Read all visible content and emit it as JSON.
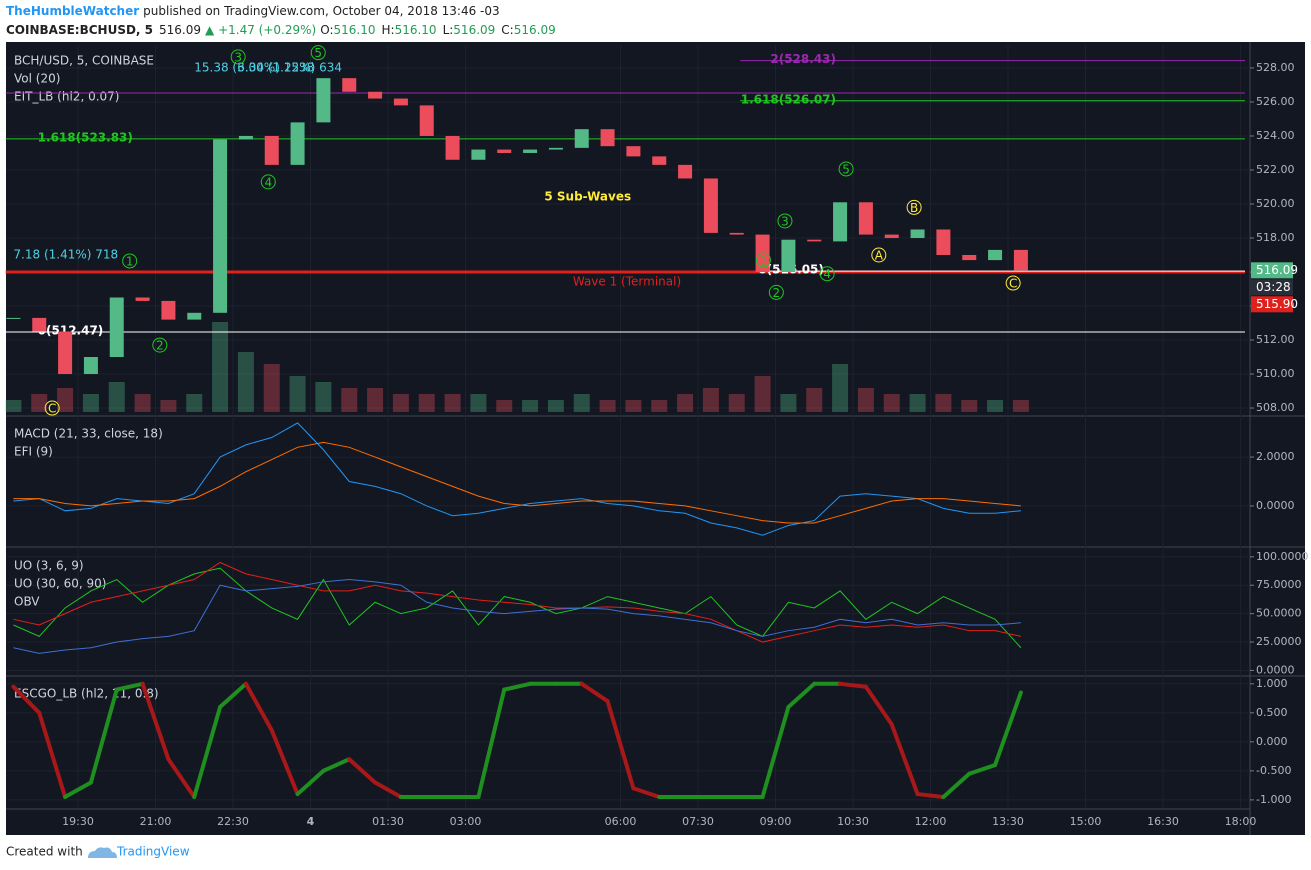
{
  "header": {
    "author": "TheHumbleWatcher",
    "published": "published on TradingView.com, October 04, 2018 13:46 -03",
    "symbol": "COINBASE:BCHUSD, 5",
    "last": "516.09",
    "change": "▲ +1.47 (+0.29%)",
    "ohlc": [
      {
        "key": "O:",
        "value": "516.10"
      },
      {
        "key": "H:",
        "value": "516.10"
      },
      {
        "key": "L:",
        "value": "516.09"
      },
      {
        "key": "C:",
        "value": "516.09"
      }
    ]
  },
  "footer": {
    "created": "Created with",
    "brand": "TradingView"
  },
  "chart_data": [
    {
      "type": "candlestick",
      "legend": [
        "BCH/USD, 5, COINBASE",
        "Vol (20)",
        "EIT_LB (hl2, 0.07)"
      ],
      "x": [
        15,
        45,
        75,
        105,
        135,
        165,
        195,
        225,
        255,
        285,
        315,
        345,
        375,
        405,
        435,
        465,
        495,
        525,
        555,
        585,
        615,
        645,
        675,
        705,
        735,
        765,
        795,
        825,
        855,
        885,
        915,
        945,
        975,
        1005,
        1035,
        1065,
        1095,
        1125,
        1155,
        1185
      ],
      "xticks": [
        {
          "value": 90,
          "label": "19:30"
        },
        {
          "value": 180,
          "label": "21:00"
        },
        {
          "value": 270,
          "label": "22:30"
        },
        {
          "value": 360,
          "label": "4"
        },
        {
          "value": 450,
          "label": "01:30"
        },
        {
          "value": 540,
          "label": "03:00"
        },
        {
          "value": 720,
          "label": "06:00"
        },
        {
          "value": 810,
          "label": "07:30"
        },
        {
          "value": 900,
          "label": "09:00"
        },
        {
          "value": 990,
          "label": "10:30"
        },
        {
          "value": 1080,
          "label": "12:00"
        },
        {
          "value": 1170,
          "label": "13:30"
        },
        {
          "value": 1260,
          "label": "15:00"
        },
        {
          "value": 1350,
          "label": "16:30"
        },
        {
          "value": 1440,
          "label": "18:00"
        }
      ],
      "close": [
        513.3,
        512.5,
        510.0,
        511.0,
        514.5,
        514.3,
        513.2,
        513.6,
        523.8,
        524.0,
        522.3,
        524.8,
        527.4,
        526.6,
        526.2,
        525.8,
        524.0,
        522.6,
        523.2,
        523.0,
        523.2,
        523.3,
        524.4,
        523.4,
        522.8,
        522.3,
        521.5,
        518.3,
        518.2,
        516.0,
        517.9,
        517.8,
        520.1,
        518.2,
        518.0,
        518.5,
        517.0,
        516.7,
        517.3,
        516.1
      ],
      "volume": [
        2,
        3,
        4,
        3,
        5,
        3,
        2,
        3,
        15,
        10,
        8,
        6,
        5,
        4,
        4,
        3,
        3,
        3,
        3,
        2,
        2,
        2,
        3,
        2,
        2,
        2,
        3,
        4,
        3,
        6,
        3,
        4,
        8,
        4,
        3,
        3,
        3,
        2,
        2,
        2
      ],
      "up_color": "#53b987",
      "down_color": "#eb4d5c",
      "ylim": [
        507.59,
        529.35
      ],
      "yticks": [
        {
          "value": 508,
          "label": "508.00"
        },
        {
          "value": 510,
          "label": "510.00"
        },
        {
          "value": 512,
          "label": "512.00"
        },
        {
          "value": 514,
          "label": "514.00"
        },
        {
          "value": 516,
          "label": "516.00"
        },
        {
          "value": 518,
          "label": "518.00"
        },
        {
          "value": 520,
          "label": "520.00"
        },
        {
          "value": 522,
          "label": "522.00"
        },
        {
          "value": 524,
          "label": "524.00"
        },
        {
          "value": 526,
          "label": "526.00"
        },
        {
          "value": 528,
          "label": "528.00"
        }
      ],
      "levels": [
        {
          "value": 523.83,
          "label": "1.618(523.83)",
          "color": "#21c521",
          "from": 6
        },
        {
          "value": 526.07,
          "label": "1.618(526.07)",
          "color": "#21c521",
          "from": 859
        },
        {
          "value": 528.43,
          "label": "2(528.43)",
          "color": "#9c27b0",
          "from": 859
        },
        {
          "value": 526.53,
          "color": "#9c27b0",
          "from": 6
        },
        {
          "value": 512.47,
          "label": "0(512.47)",
          "color": "#ffffff",
          "from": 6
        },
        {
          "value": 516.0,
          "label": "Wave 1 (Terminal)",
          "color": "#e0201b",
          "from": 6
        },
        {
          "value": 516.05,
          "label": "0(516.05)",
          "color": "#ffffff",
          "from": 880
        }
      ],
      "annotations": [
        {
          "text": "5 Sub-Waves",
          "t": 682,
          "price": 520.4,
          "color": "#ffeb3b"
        },
        {
          "text": "7.18 (1.41%) 718",
          "t": 15,
          "price": 517.0,
          "color": "#4dd0e1"
        },
        {
          "text": "15.38 (3.00%) 1538",
          "t": 225,
          "price": 528.0,
          "color": "#4dd0e1"
        },
        {
          "text": "6.34 (1.22%) 634",
          "t": 275,
          "price": 528.0,
          "color": "#4dd0e1"
        }
      ],
      "waves": [
        {
          "label": "C",
          "t": 60,
          "price": 508.0,
          "color": "#ffeb3b"
        },
        {
          "label": "1",
          "t": 150,
          "price": 516.65,
          "color": "#21c521"
        },
        {
          "label": "2",
          "t": 185,
          "price": 511.7,
          "color": "#21c521"
        },
        {
          "label": "3",
          "t": 276,
          "price": 528.65,
          "color": "#21c521"
        },
        {
          "label": "4",
          "t": 311,
          "price": 521.3,
          "color": "#21c521"
        },
        {
          "label": "5",
          "t": 369,
          "price": 528.9,
          "color": "#21c521"
        },
        {
          "label": "1",
          "t": 886,
          "price": 516.7,
          "color": "#21c521"
        },
        {
          "label": "2",
          "t": 901,
          "price": 514.8,
          "color": "#21c521"
        },
        {
          "label": "3",
          "t": 911,
          "price": 519.0,
          "color": "#21c521"
        },
        {
          "label": "4",
          "t": 960,
          "price": 515.9,
          "color": "#21c521"
        },
        {
          "label": "5",
          "t": 982,
          "price": 522.06,
          "color": "#21c521"
        },
        {
          "label": "A",
          "t": 1020,
          "price": 517.0,
          "color": "#ffeb3b"
        },
        {
          "label": "B",
          "t": 1061,
          "price": 519.8,
          "color": "#ffeb3b"
        },
        {
          "label": "C",
          "t": 1176,
          "price": 515.35,
          "color": "#ffeb3b"
        }
      ],
      "price_tags": [
        {
          "label": "516.09",
          "color": "#53b987"
        },
        {
          "label": "03:28",
          "color": "#2a2e39"
        },
        {
          "label": "515.90",
          "color": "#e0201b"
        }
      ]
    },
    {
      "type": "line",
      "legend": [
        "MACD (21, 33, close, 18)",
        "EFI (9)"
      ],
      "ylim": [
        -1.6,
        3.6
      ],
      "yticks": [
        {
          "value": 2,
          "label": "2.0000"
        },
        {
          "value": 0,
          "label": "0.0000"
        }
      ],
      "series": [
        {
          "color": "#2196f3",
          "values": [
            0.2,
            0.3,
            -0.2,
            -0.1,
            0.3,
            0.2,
            0.1,
            0.5,
            2.0,
            2.5,
            2.8,
            3.4,
            2.3,
            1.0,
            0.8,
            0.5,
            0.0,
            -0.4,
            -0.3,
            -0.1,
            0.1,
            0.2,
            0.3,
            0.1,
            0.0,
            -0.2,
            -0.3,
            -0.7,
            -0.9,
            -1.2,
            -0.8,
            -0.6,
            0.4,
            0.5,
            0.4,
            0.3,
            -0.1,
            -0.3,
            -0.3,
            -0.2
          ]
        },
        {
          "color": "#ff6d00",
          "values": [
            0.3,
            0.3,
            0.1,
            0.0,
            0.1,
            0.2,
            0.2,
            0.3,
            0.8,
            1.4,
            1.9,
            2.4,
            2.6,
            2.4,
            2.0,
            1.6,
            1.2,
            0.8,
            0.4,
            0.1,
            0.0,
            0.1,
            0.2,
            0.2,
            0.2,
            0.1,
            0.0,
            -0.2,
            -0.4,
            -0.6,
            -0.7,
            -0.7,
            -0.4,
            -0.1,
            0.2,
            0.3,
            0.3,
            0.2,
            0.1,
            0.0
          ]
        }
      ]
    },
    {
      "type": "line",
      "legend": [
        "UO (3, 6, 9)",
        "UO (30, 60, 90)",
        "OBV"
      ],
      "ylim": [
        -4,
        106
      ],
      "yticks": [
        {
          "value": 100,
          "label": "100.0000"
        },
        {
          "value": 75,
          "label": "75.0000"
        },
        {
          "value": 50,
          "label": "50.0000"
        },
        {
          "value": 25,
          "label": "25.0000"
        },
        {
          "value": 0,
          "label": "0.0000"
        }
      ],
      "series": [
        {
          "color": "#21c521",
          "values": [
            40,
            30,
            55,
            70,
            80,
            60,
            75,
            85,
            90,
            70,
            55,
            45,
            80,
            40,
            60,
            50,
            55,
            70,
            40,
            65,
            60,
            50,
            55,
            65,
            60,
            55,
            50,
            65,
            40,
            30,
            60,
            55,
            70,
            45,
            60,
            50,
            65,
            55,
            45,
            20
          ]
        },
        {
          "color": "#e0201b",
          "values": [
            45,
            40,
            50,
            60,
            65,
            70,
            75,
            80,
            95,
            85,
            80,
            75,
            70,
            70,
            75,
            70,
            68,
            65,
            62,
            60,
            58,
            55,
            55,
            56,
            55,
            52,
            50,
            45,
            35,
            25,
            30,
            35,
            40,
            38,
            40,
            38,
            40,
            35,
            35,
            30
          ]
        },
        {
          "color": "#3f6fd1",
          "values": [
            20,
            15,
            18,
            20,
            25,
            28,
            30,
            35,
            75,
            70,
            72,
            74,
            78,
            80,
            78,
            75,
            60,
            55,
            52,
            50,
            52,
            54,
            55,
            54,
            50,
            48,
            45,
            42,
            35,
            30,
            35,
            38,
            45,
            42,
            45,
            40,
            42,
            40,
            40,
            42
          ]
        }
      ]
    },
    {
      "type": "oscillator",
      "legend": [
        "ESCGO_LB (hl2, 21, 0.8)"
      ],
      "ylim": [
        -1.14,
        1.1
      ],
      "yticks": [
        {
          "value": 1,
          "label": "1.000"
        },
        {
          "value": 0.5,
          "label": "0.500"
        },
        {
          "value": 0,
          "label": "0.000"
        },
        {
          "value": -0.5,
          "label": "-0.500"
        },
        {
          "value": -1,
          "label": "-1.000"
        }
      ],
      "up_color": "#1f8f1f",
      "down_color": "#a81818",
      "values": [
        0.95,
        0.5,
        -0.95,
        -0.7,
        0.9,
        1.0,
        -0.3,
        -0.95,
        0.6,
        1.0,
        0.2,
        -0.9,
        -0.5,
        -0.3,
        -0.7,
        -0.95,
        -0.95,
        -0.95,
        -0.95,
        0.9,
        1.0,
        1.0,
        1.0,
        0.7,
        -0.8,
        -0.95,
        -0.95,
        -0.95,
        -0.95,
        -0.95,
        0.6,
        1.0,
        1.0,
        0.95,
        0.3,
        -0.9,
        -0.95,
        -0.55,
        -0.4,
        0.85
      ]
    }
  ]
}
